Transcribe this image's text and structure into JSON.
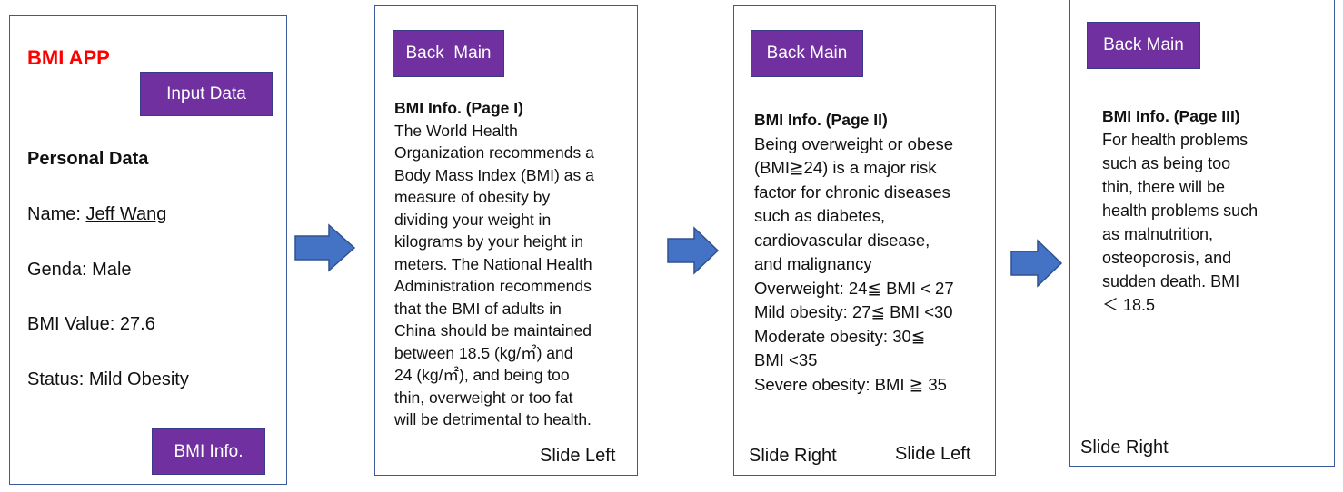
{
  "screen1": {
    "app_title": "BMI APP",
    "input_button": "Input Data",
    "section_title": "Personal Data",
    "name_label": "Name: ",
    "name_value": "Jeff Wang",
    "gender": "Genda: Male",
    "bmi_value": "BMI Value: 27.6",
    "status": "Status: Mild Obesity",
    "info_button": "BMI Info."
  },
  "screen2": {
    "back_button": "Back  Main",
    "title": "BMI Info. (Page I)",
    "lines": [
      "The World Health",
      "Organization recommends a",
      "Body Mass Index (BMI) as a",
      "measure of obesity by",
      "dividing your weight in",
      "kilograms by your height in",
      "meters. The National Health",
      "Administration recommends",
      "that the BMI of adults in",
      "China should be maintained",
      "between 18.5 (kg/㎡) and",
      "24 (kg/㎡), and being too",
      "thin, overweight or too fat",
      "will be detrimental to health."
    ],
    "slide_left": "Slide Left"
  },
  "screen3": {
    "back_button": "Back Main",
    "title": "BMI Info. (Page II)",
    "lines": [
      "Being overweight or obese",
      "(BMI≧24) is a major risk",
      "factor for chronic diseases",
      "such as diabetes,",
      "cardiovascular disease,",
      "and malignancy",
      "Overweight: 24≦ BMI < 27",
      "Mild obesity: 27≦ BMI <30",
      "Moderate obesity: 30≦",
      "BMI <35",
      "Severe obesity: BMI ≧ 35"
    ],
    "slide_right": "Slide Right",
    "slide_left": "Slide Left"
  },
  "screen4": {
    "back_button": "Back Main",
    "title": "BMI Info. (Page III)",
    "lines": [
      "For health problems",
      "such as being too",
      "thin, there will be",
      "health problems such",
      "as malnutrition,",
      "osteoporosis, and",
      "sudden death. BMI",
      "＜ 18.5"
    ],
    "slide_right": "Slide Right"
  },
  "colors": {
    "button_purple": "#7030a0",
    "title_red": "#ff0000",
    "arrow_blue": "#4472c4",
    "border_blue": "#3a5a9a"
  }
}
